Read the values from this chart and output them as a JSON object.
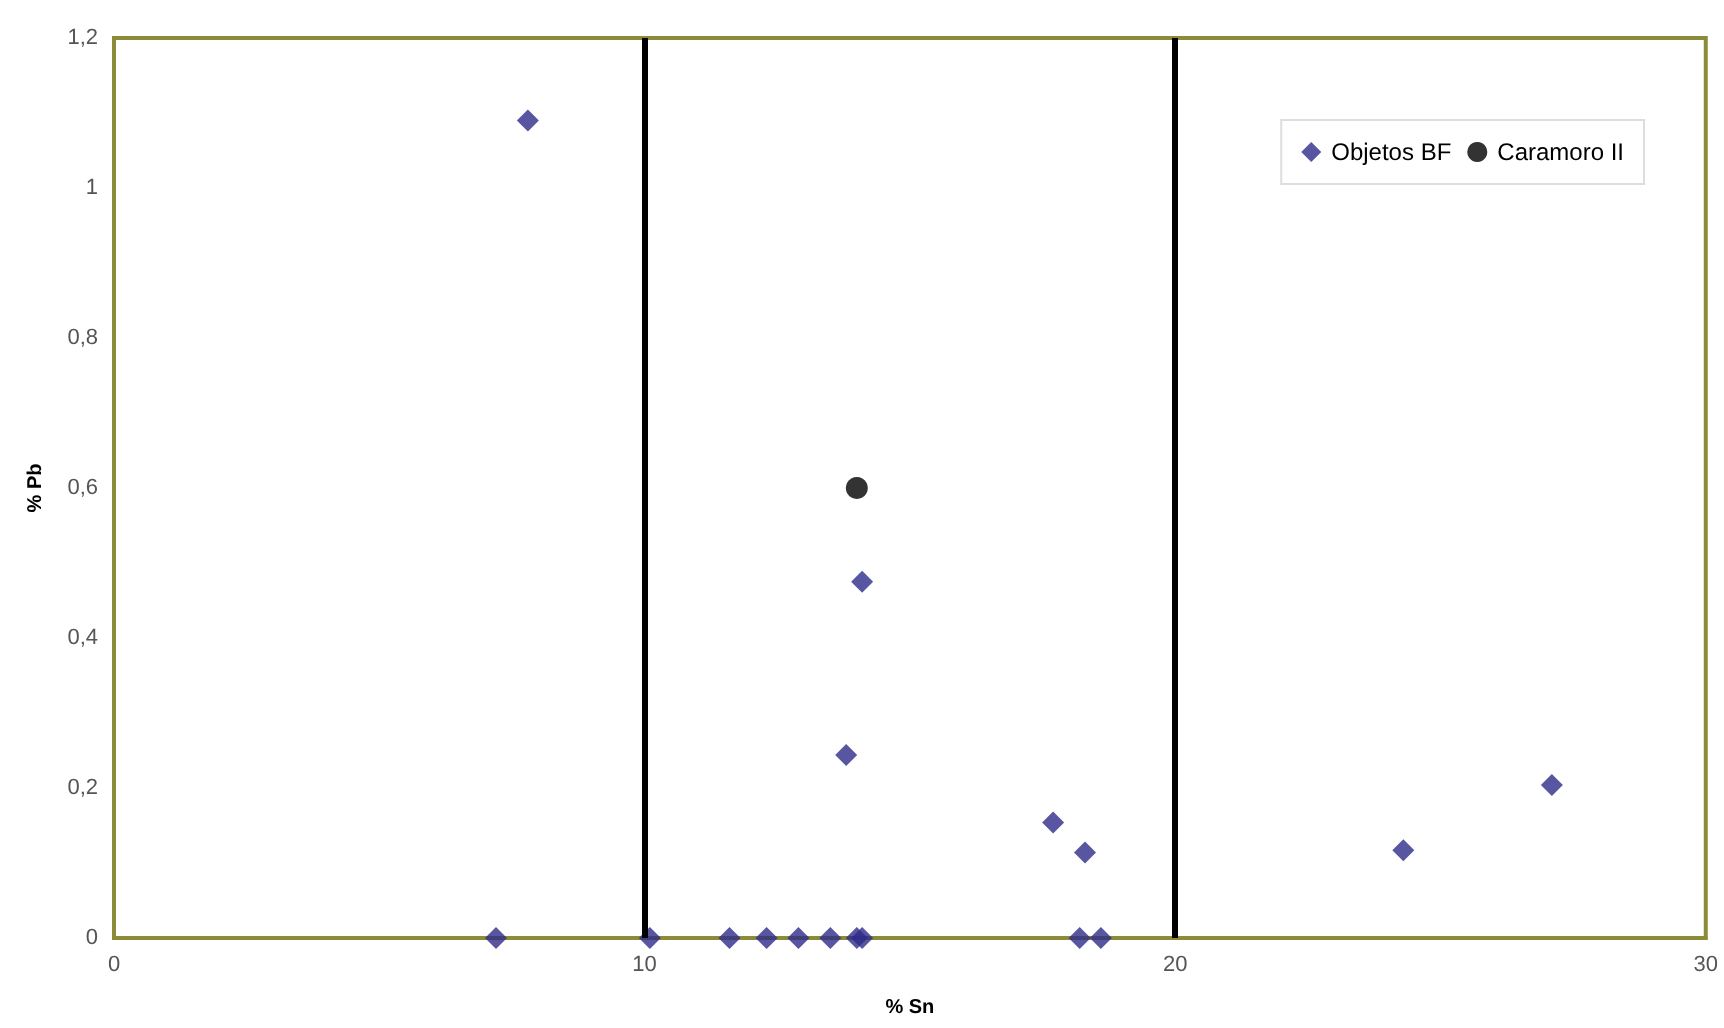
{
  "chart_data": {
    "type": "scatter",
    "xlabel": "% Sn",
    "ylabel": "% Pb",
    "xlim": [
      0,
      30
    ],
    "xticks": [
      0,
      10,
      20,
      30
    ],
    "ylim": [
      0,
      1.2
    ],
    "yticks": [
      0,
      {
        "value": 0.2,
        "label": "0,2"
      },
      {
        "value": 0.4,
        "label": "0,4"
      },
      {
        "value": 0.6,
        "label": "0,6"
      },
      {
        "value": 0.8,
        "label": "0,8"
      },
      1,
      {
        "value": 1.2,
        "label": "1,2"
      }
    ],
    "grid": false,
    "legend": "top right",
    "ref_lines": [
      {
        "axis": "x",
        "value": 10,
        "color": "#000000"
      },
      {
        "axis": "x",
        "value": 20,
        "color": "#000000"
      }
    ],
    "series": [
      {
        "name": "Objetos BF",
        "color": "#2e2a8a",
        "marker": "diamond",
        "x": [
          7.2,
          7.8,
          10.1,
          11.6,
          12.3,
          12.9,
          13.5,
          14.0,
          14.1,
          13.8,
          14.1,
          17.7,
          18.2,
          18.3,
          18.6,
          24.3,
          27.1
        ],
        "values": [
          0,
          1.09,
          0,
          0,
          0,
          0,
          0,
          0,
          0,
          0.244,
          0.475,
          0.154,
          0,
          0.114,
          0,
          0.117,
          0.204
        ]
      },
      {
        "name": "Caramoro II",
        "color": "#000000",
        "marker": "circle",
        "x": [
          14.0
        ],
        "values": [
          0.6
        ]
      }
    ]
  }
}
